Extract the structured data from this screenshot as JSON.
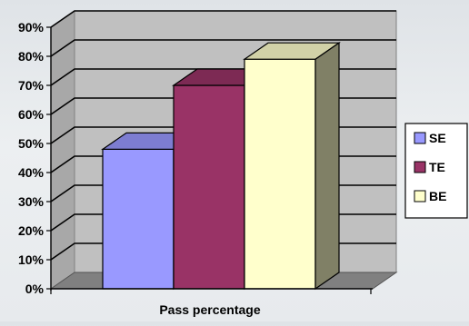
{
  "chart_data": {
    "type": "bar",
    "style": "3d-clustered-column",
    "categories": [
      "Pass percentage"
    ],
    "xlabel": "Pass percentage",
    "ylabel": "",
    "title": "",
    "ylim": [
      0,
      90
    ],
    "yticks": [
      "0%",
      "10%",
      "20%",
      "30%",
      "40%",
      "50%",
      "60%",
      "70%",
      "80%",
      "90%"
    ],
    "grid": true,
    "legend_position": "right",
    "series": [
      {
        "name": "SE",
        "values": [
          48
        ],
        "color": "#9999ff"
      },
      {
        "name": "TE",
        "values": [
          70
        ],
        "color": "#993366"
      },
      {
        "name": "BE",
        "values": [
          79
        ],
        "color": "#ffffcc"
      }
    ],
    "wall_color": "#c0c0c0",
    "floor_color": "#808080"
  }
}
